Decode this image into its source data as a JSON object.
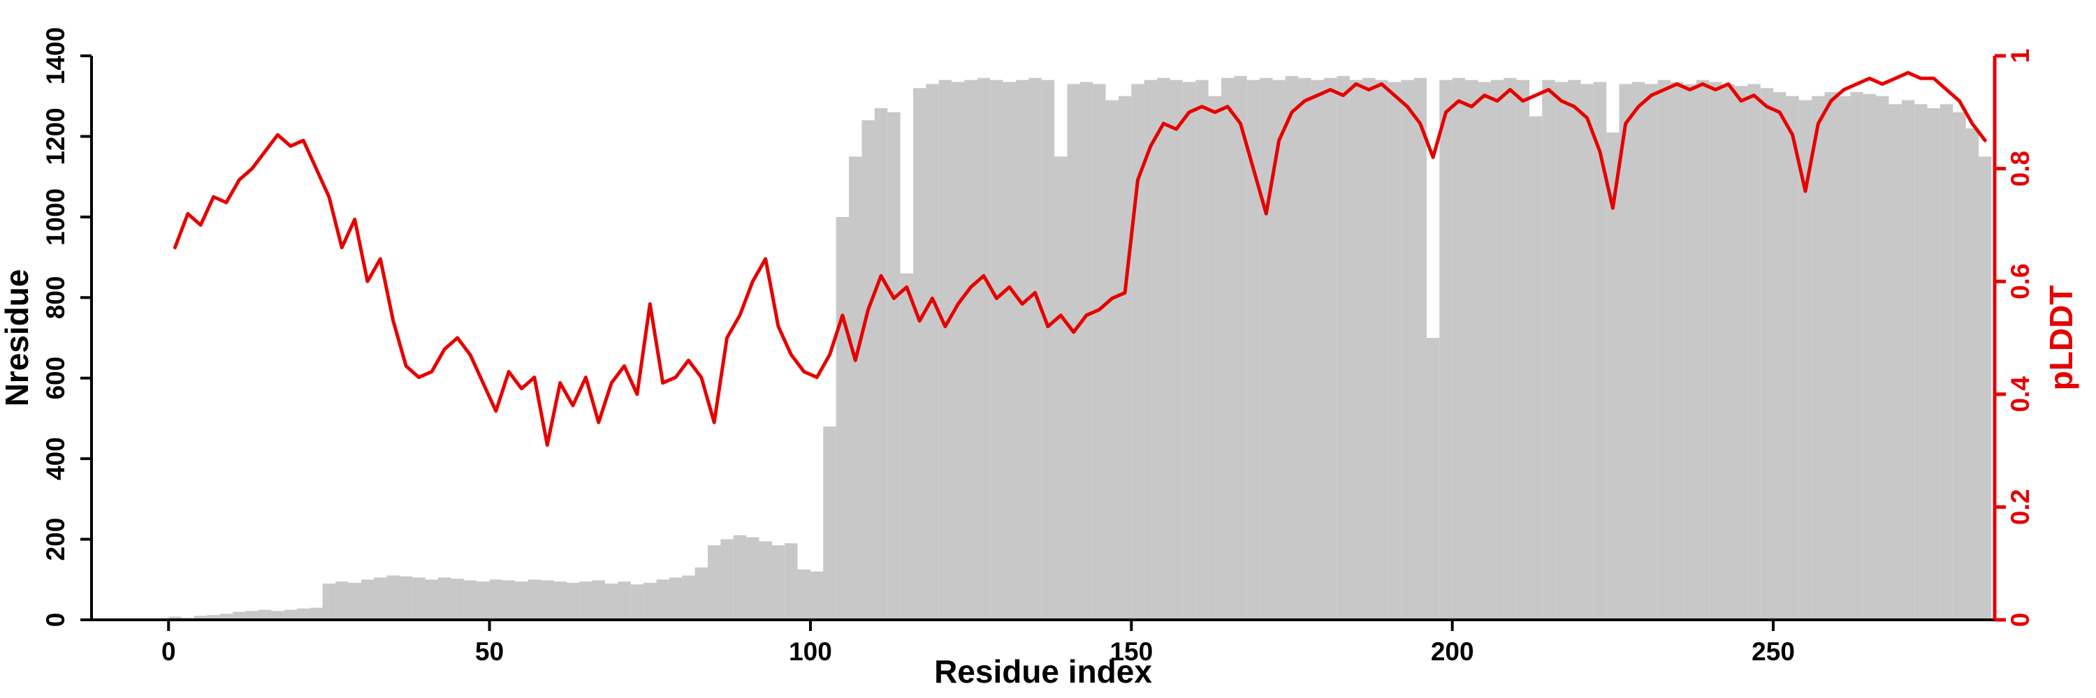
{
  "chart_data": {
    "type": "bar",
    "title": "",
    "xlabel": "Residue index",
    "ylabel_left": "Nresidue",
    "ylabel_right": "pLDDT",
    "x_start": 1,
    "x_step": 2,
    "xlim": [
      -12,
      284.5
    ],
    "x_ticks": [
      0,
      50,
      100,
      150,
      200,
      250
    ],
    "left_axis": {
      "label": "Nresidue",
      "ticks": [
        0,
        200,
        400,
        600,
        800,
        1000,
        1200,
        1400
      ],
      "range": [
        0,
        1400
      ],
      "color": "#000000"
    },
    "right_axis": {
      "label": "pLDDT",
      "ticks": [
        0,
        0.2,
        0.4,
        0.6,
        0.8,
        1
      ],
      "range": [
        0,
        1
      ],
      "color": "#e60000"
    },
    "bar_color": "#c8c8c8",
    "line_color": "#e60000",
    "grid": false,
    "legend": "none",
    "series": [
      {
        "name": "Nresidue",
        "type": "bar",
        "axis": "left",
        "values": [
          8,
          5,
          10,
          12,
          15,
          20,
          22,
          25,
          22,
          25,
          28,
          30,
          90,
          95,
          92,
          100,
          105,
          110,
          108,
          105,
          100,
          105,
          102,
          98,
          95,
          100,
          98,
          95,
          100,
          98,
          95,
          92,
          95,
          98,
          90,
          95,
          88,
          92,
          100,
          105,
          110,
          130,
          185,
          200,
          210,
          205,
          195,
          185,
          190,
          125,
          120,
          480,
          1000,
          1150,
          1240,
          1270,
          1260,
          860,
          1320,
          1330,
          1340,
          1335,
          1340,
          1345,
          1340,
          1335,
          1340,
          1345,
          1340,
          1150,
          1330,
          1335,
          1330,
          1290,
          1300,
          1330,
          1340,
          1345,
          1340,
          1335,
          1340,
          1300,
          1345,
          1350,
          1340,
          1345,
          1340,
          1350,
          1345,
          1340,
          1345,
          1350,
          1340,
          1345,
          1340,
          1335,
          1340,
          1345,
          700,
          1340,
          1345,
          1340,
          1335,
          1340,
          1345,
          1340,
          1250,
          1340,
          1335,
          1340,
          1330,
          1335,
          1210,
          1330,
          1335,
          1330,
          1340,
          1335,
          1330,
          1340,
          1335,
          1330,
          1325,
          1330,
          1320,
          1310,
          1300,
          1290,
          1300,
          1310,
          1300,
          1310,
          1305,
          1300,
          1280,
          1290,
          1280,
          1270,
          1280,
          1260,
          1220,
          1150
        ]
      },
      {
        "name": "pLDDT",
        "type": "line",
        "axis": "right",
        "values": [
          0.66,
          0.72,
          0.7,
          0.75,
          0.74,
          0.78,
          0.8,
          0.83,
          0.86,
          0.84,
          0.85,
          0.8,
          0.75,
          0.66,
          0.71,
          0.6,
          0.64,
          0.53,
          0.45,
          0.43,
          0.44,
          0.48,
          0.5,
          0.47,
          0.42,
          0.37,
          0.44,
          0.41,
          0.43,
          0.31,
          0.42,
          0.38,
          0.43,
          0.35,
          0.42,
          0.45,
          0.4,
          0.56,
          0.42,
          0.43,
          0.46,
          0.43,
          0.35,
          0.5,
          0.54,
          0.6,
          0.64,
          0.52,
          0.47,
          0.44,
          0.43,
          0.47,
          0.54,
          0.46,
          0.55,
          0.61,
          0.57,
          0.59,
          0.53,
          0.57,
          0.52,
          0.56,
          0.59,
          0.61,
          0.57,
          0.59,
          0.56,
          0.58,
          0.52,
          0.54,
          0.51,
          0.54,
          0.55,
          0.57,
          0.58,
          0.78,
          0.84,
          0.88,
          0.87,
          0.9,
          0.91,
          0.9,
          0.91,
          0.88,
          0.8,
          0.72,
          0.85,
          0.9,
          0.92,
          0.93,
          0.94,
          0.93,
          0.95,
          0.94,
          0.95,
          0.93,
          0.91,
          0.88,
          0.82,
          0.9,
          0.92,
          0.91,
          0.93,
          0.92,
          0.94,
          0.92,
          0.93,
          0.94,
          0.92,
          0.91,
          0.89,
          0.83,
          0.73,
          0.88,
          0.91,
          0.93,
          0.94,
          0.95,
          0.94,
          0.95,
          0.94,
          0.95,
          0.92,
          0.93,
          0.91,
          0.9,
          0.86,
          0.76,
          0.88,
          0.92,
          0.94,
          0.95,
          0.96,
          0.95,
          0.96,
          0.97,
          0.96,
          0.96,
          0.94,
          0.92,
          0.88,
          0.85
        ]
      }
    ]
  }
}
